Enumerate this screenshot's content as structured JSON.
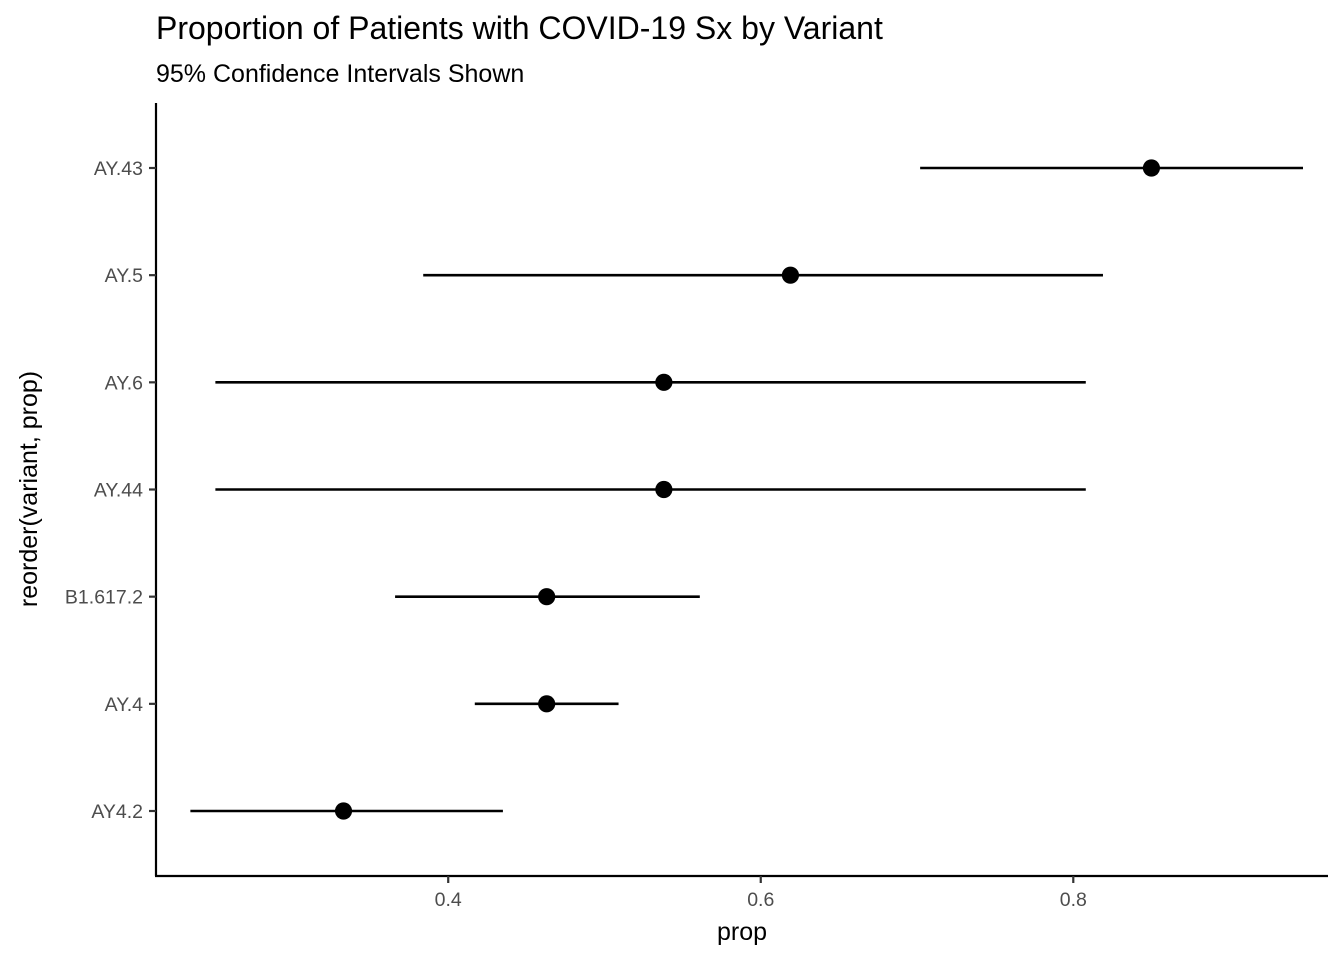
{
  "chart_data": {
    "type": "scatter",
    "subtype": "pointrange",
    "title": "Proportion of Patients with COVID-19 Sx by Variant",
    "subtitle": "95% Confidence Intervals Shown",
    "xlabel": "prop",
    "ylabel": "reorder(variant, prop)",
    "xlim": [
      0.213,
      0.963
    ],
    "x_ticks": [
      0.4,
      0.6,
      0.8
    ],
    "x_tick_labels": [
      "0.4",
      "0.6",
      "0.8"
    ],
    "grid": false,
    "categories": [
      "AY4.2",
      "AY.4",
      "B1.617.2",
      "AY.44",
      "AY.6",
      "AY.5",
      "AY.43"
    ],
    "values": [
      0.333,
      0.463,
      0.463,
      0.538,
      0.538,
      0.619,
      0.85
    ],
    "lower": [
      0.235,
      0.417,
      0.366,
      0.251,
      0.251,
      0.384,
      0.702
    ],
    "upper": [
      0.435,
      0.509,
      0.561,
      0.808,
      0.808,
      0.819,
      0.947
    ]
  }
}
